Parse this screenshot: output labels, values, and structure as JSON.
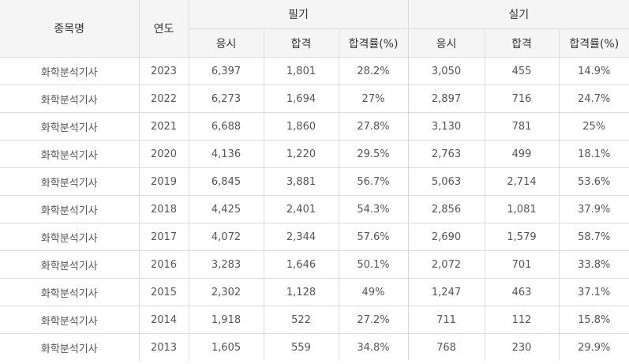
{
  "header": {
    "item_name": "종목명",
    "year": "연도",
    "written": "필기",
    "practical": "실기",
    "applicants": "응시",
    "passed": "합격",
    "pass_rate": "합격률(%)"
  },
  "rows": [
    {
      "name": "화학분석기사",
      "year": "2023",
      "w_app": "6,397",
      "w_pass": "1,801",
      "w_rate": "28.2%",
      "p_app": "3,050",
      "p_pass": "455",
      "p_rate": "14.9%"
    },
    {
      "name": "화학분석기사",
      "year": "2022",
      "w_app": "6,273",
      "w_pass": "1,694",
      "w_rate": "27%",
      "p_app": "2,897",
      "p_pass": "716",
      "p_rate": "24.7%"
    },
    {
      "name": "화학분석기사",
      "year": "2021",
      "w_app": "6,688",
      "w_pass": "1,860",
      "w_rate": "27.8%",
      "p_app": "3,130",
      "p_pass": "781",
      "p_rate": "25%"
    },
    {
      "name": "화학분석기사",
      "year": "2020",
      "w_app": "4,136",
      "w_pass": "1,220",
      "w_rate": "29.5%",
      "p_app": "2,763",
      "p_pass": "499",
      "p_rate": "18.1%"
    },
    {
      "name": "화학분석기사",
      "year": "2019",
      "w_app": "6,845",
      "w_pass": "3,881",
      "w_rate": "56.7%",
      "p_app": "5,063",
      "p_pass": "2,714",
      "p_rate": "53.6%"
    },
    {
      "name": "화학분석기사",
      "year": "2018",
      "w_app": "4,425",
      "w_pass": "2,401",
      "w_rate": "54.3%",
      "p_app": "2,856",
      "p_pass": "1,081",
      "p_rate": "37.9%"
    },
    {
      "name": "화학분석기사",
      "year": "2017",
      "w_app": "4,072",
      "w_pass": "2,344",
      "w_rate": "57.6%",
      "p_app": "2,690",
      "p_pass": "1,579",
      "p_rate": "58.7%"
    },
    {
      "name": "화학분석기사",
      "year": "2016",
      "w_app": "3,283",
      "w_pass": "1,646",
      "w_rate": "50.1%",
      "p_app": "2,072",
      "p_pass": "701",
      "p_rate": "33.8%"
    },
    {
      "name": "화학분석기사",
      "year": "2015",
      "w_app": "2,302",
      "w_pass": "1,128",
      "w_rate": "49%",
      "p_app": "1,247",
      "p_pass": "463",
      "p_rate": "37.1%"
    },
    {
      "name": "화학분석기사",
      "year": "2014",
      "w_app": "1,918",
      "w_pass": "522",
      "w_rate": "27.2%",
      "p_app": "711",
      "p_pass": "112",
      "p_rate": "15.8%"
    },
    {
      "name": "화학분석기사",
      "year": "2013",
      "w_app": "1,605",
      "w_pass": "559",
      "w_rate": "34.8%",
      "p_app": "768",
      "p_pass": "230",
      "p_rate": "29.9%"
    }
  ]
}
